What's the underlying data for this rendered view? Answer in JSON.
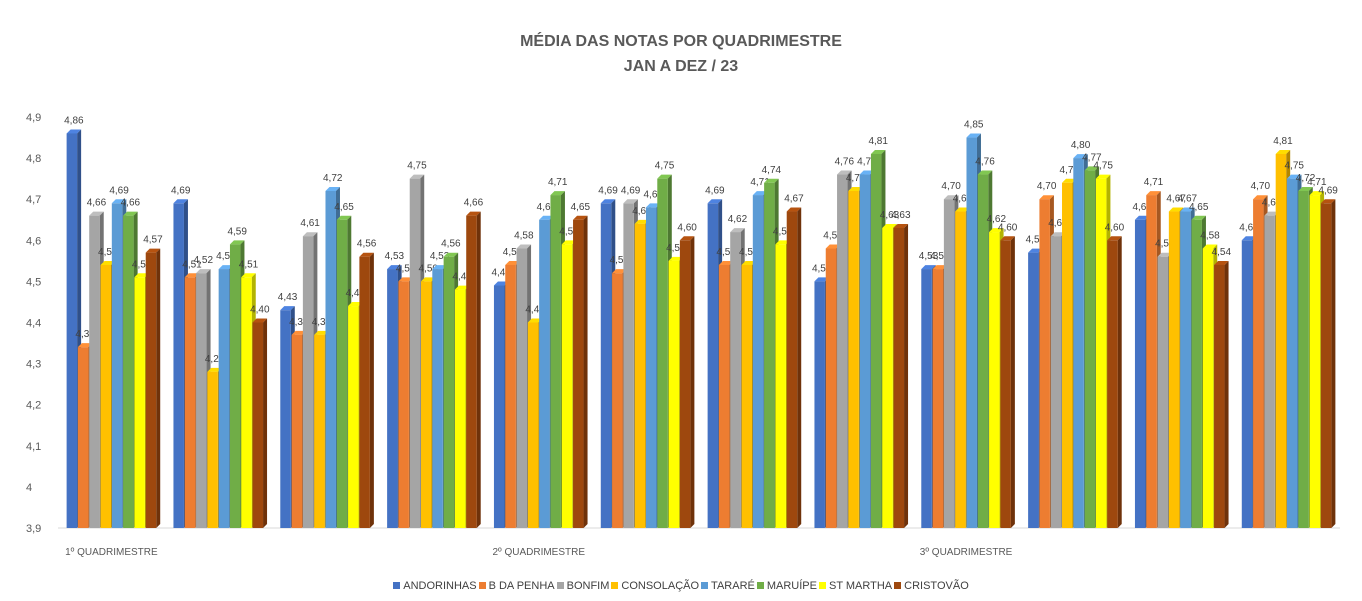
{
  "chart_data": {
    "type": "bar",
    "title": "MÉDIA DAS NOTAS POR QUADRIMESTRE",
    "subtitle": "JAN A DEZ / 23",
    "xlabel": "",
    "ylabel": "",
    "ylim": [
      3.9,
      4.9
    ],
    "yticks": [
      "3,9",
      "4",
      "4,1",
      "4,2",
      "4,3",
      "4,4",
      "4,5",
      "4,6",
      "4,7",
      "4,8",
      "4,9"
    ],
    "categories": [
      "1º QUADRIMESTRE",
      "",
      "",
      "",
      "2º QUADRIMESTRE",
      "",
      "",
      "",
      "3º QUADRIMESTRE",
      "",
      "",
      ""
    ],
    "legend_position": "bottom",
    "grid": false,
    "series": [
      {
        "name": "ANDORINHAS",
        "color": "#4472C4",
        "values": [
          4.86,
          4.69,
          4.43,
          4.53,
          4.49,
          4.69,
          4.69,
          4.5,
          4.53,
          4.57,
          4.65,
          4.6
        ]
      },
      {
        "name": "B DA PENHA",
        "color": "#ED7D31",
        "values": [
          4.34,
          4.51,
          4.37,
          4.5,
          4.54,
          4.52,
          4.54,
          4.58,
          4.53,
          4.7,
          4.71,
          4.7
        ]
      },
      {
        "name": "BONFIM",
        "color": "#A5A5A5",
        "values": [
          4.66,
          4.52,
          4.61,
          4.75,
          4.58,
          4.69,
          4.62,
          4.76,
          4.7,
          4.61,
          4.56,
          4.66
        ]
      },
      {
        "name": "CONSOLAÇÃO",
        "color": "#FFC000",
        "values": [
          4.54,
          4.28,
          4.37,
          4.5,
          4.4,
          4.64,
          4.54,
          4.72,
          4.67,
          4.74,
          4.67,
          4.81
        ]
      },
      {
        "name": "TARARÉ",
        "color": "#5B9BD5",
        "values": [
          4.69,
          4.53,
          4.72,
          4.53,
          4.65,
          4.68,
          4.71,
          4.76,
          4.85,
          4.8,
          4.67,
          4.75
        ]
      },
      {
        "name": "MARUÍPE",
        "color": "#70AD47",
        "values": [
          4.66,
          4.59,
          4.65,
          4.56,
          4.71,
          4.75,
          4.74,
          4.81,
          4.76,
          4.77,
          4.65,
          4.72
        ]
      },
      {
        "name": "ST MARTHA",
        "color": "#FFFF00",
        "values": [
          4.51,
          4.51,
          4.44,
          4.48,
          4.59,
          4.55,
          4.59,
          4.63,
          4.62,
          4.75,
          4.58,
          4.71
        ]
      },
      {
        "name": "CRISTOVÃO",
        "color": "#9E480E",
        "values": [
          4.57,
          4.4,
          4.56,
          4.66,
          4.65,
          4.6,
          4.67,
          4.63,
          4.6,
          4.6,
          4.54,
          4.69
        ]
      }
    ]
  }
}
